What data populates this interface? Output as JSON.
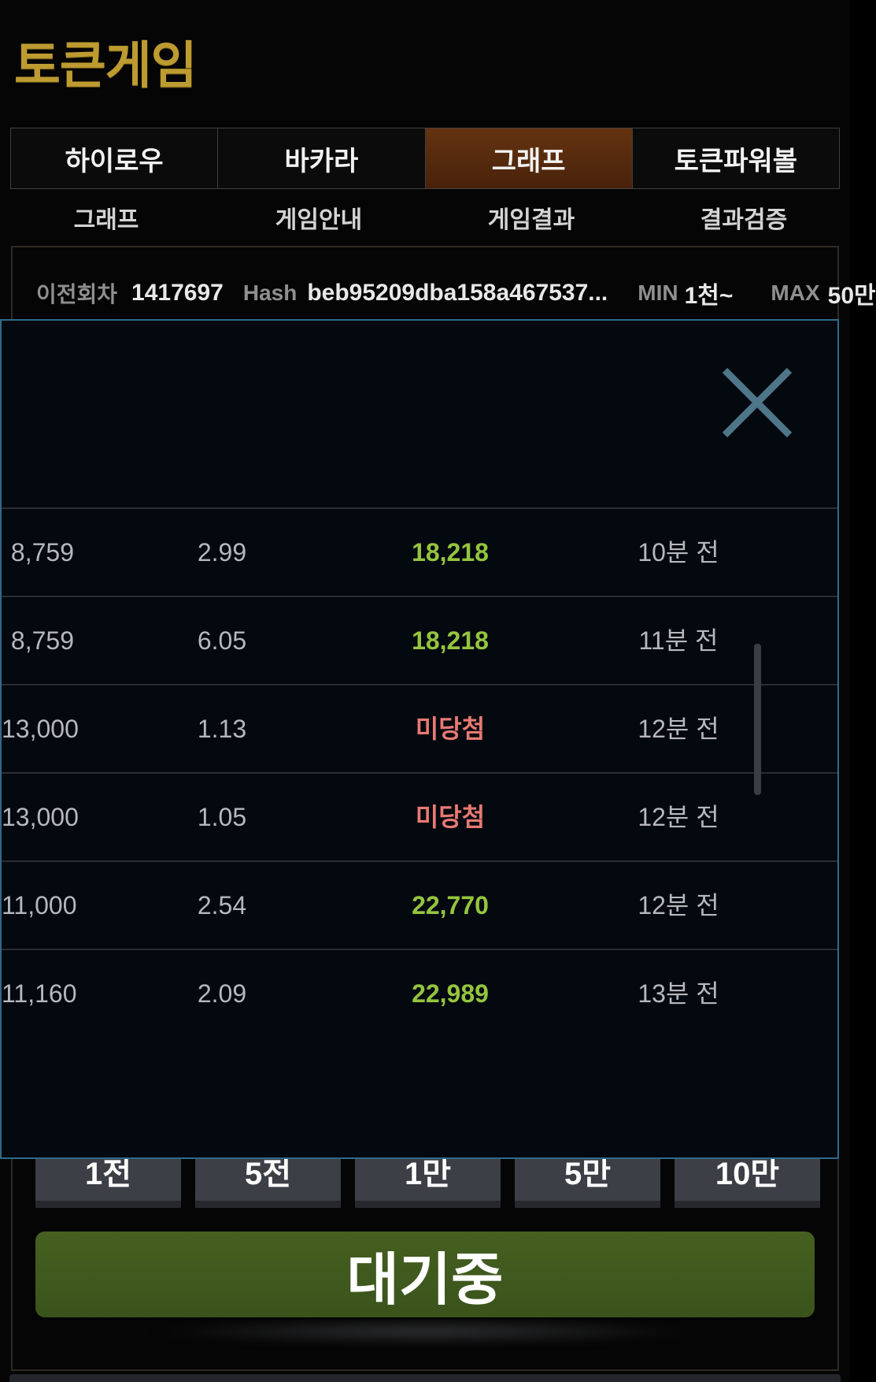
{
  "app": {
    "logo": "토큰게임"
  },
  "tabs": [
    {
      "label": "하이로우",
      "active": false
    },
    {
      "label": "바카라",
      "active": false
    },
    {
      "label": "그래프",
      "active": true
    },
    {
      "label": "토큰파워볼",
      "active": false
    }
  ],
  "subnav": [
    {
      "label": "그래프"
    },
    {
      "label": "게임안내"
    },
    {
      "label": "게임결과"
    },
    {
      "label": "결과검증"
    }
  ],
  "round_info": {
    "prev_round_label": "이전회차",
    "prev_round_value": "1417697",
    "hash_label": "Hash",
    "hash_value": "beb95209dba158a467537...",
    "min_label": "MIN",
    "min_value": "1천~",
    "max_label": "MAX",
    "max_value": "50만"
  },
  "modal": {
    "close_icon": "x-icon",
    "results": [
      {
        "amount": "8,759",
        "multiplier": "2.99",
        "result": "18,218",
        "result_type": "win",
        "time": "10분 전"
      },
      {
        "amount": "8,759",
        "multiplier": "6.05",
        "result": "18,218",
        "result_type": "win",
        "time": "11분 전"
      },
      {
        "amount": "13,000",
        "multiplier": "1.13",
        "result": "미당첨",
        "result_type": "lose",
        "time": "12분 전"
      },
      {
        "amount": "13,000",
        "multiplier": "1.05",
        "result": "미당첨",
        "result_type": "lose",
        "time": "12분 전"
      },
      {
        "amount": "11,000",
        "multiplier": "2.54",
        "result": "22,770",
        "result_type": "win",
        "time": "12분 전"
      },
      {
        "amount": "11,160",
        "multiplier": "2.09",
        "result": "22,989",
        "result_type": "win",
        "time": "13분 전"
      }
    ]
  },
  "betting": {
    "chips": [
      "1전",
      "5전",
      "1만",
      "5만",
      "10만"
    ],
    "status_button": "대기중"
  },
  "colors": {
    "logo_gold": "#bd9b31",
    "active_tab_brown": "#5a2c0f",
    "modal_border_teal": "#2e6b8a",
    "win_green": "#94c53e",
    "lose_red": "#e87a72",
    "status_button_green": "#3f5a1e"
  }
}
